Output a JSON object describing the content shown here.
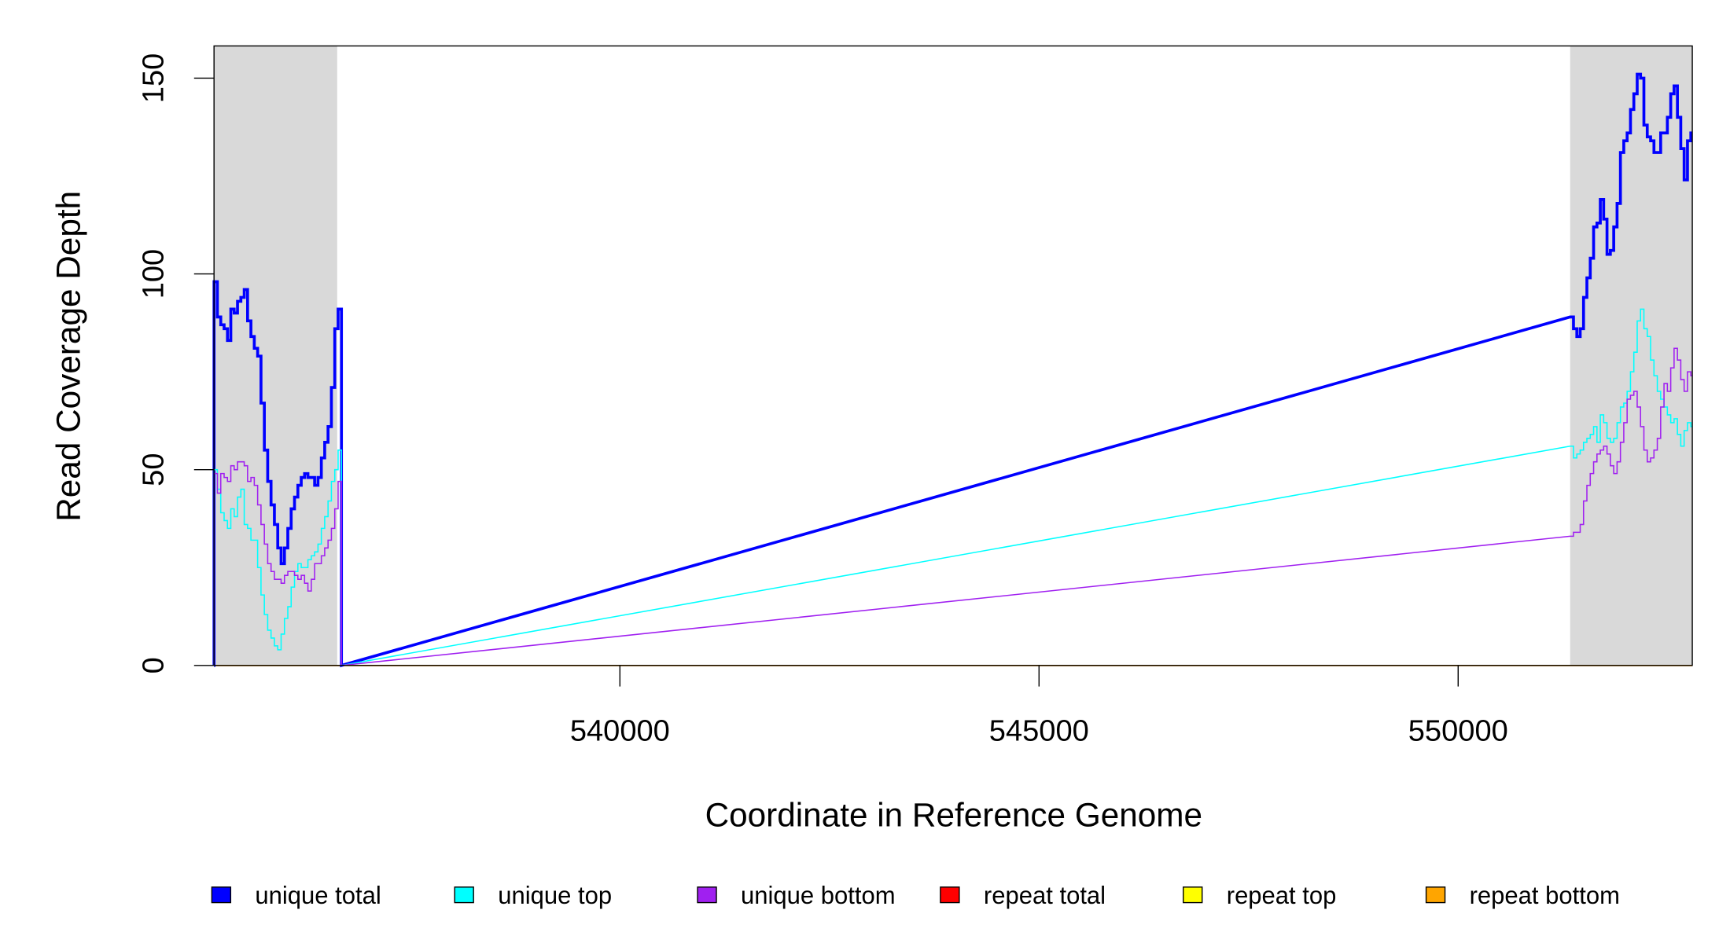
{
  "chart_data": {
    "type": "line",
    "title": "",
    "xlabel": "Coordinate in Reference Genome",
    "ylabel": "Read Coverage Depth",
    "xlim": [
      535158,
      552791
    ],
    "ylim": [
      0,
      158
    ],
    "x_ticks": [
      540000,
      545000,
      550000
    ],
    "x_tick_labels": [
      "540000",
      "545000",
      "550000"
    ],
    "y_ticks": [
      0,
      50,
      100,
      150
    ],
    "y_tick_labels": [
      "0",
      "50",
      "100",
      "150"
    ],
    "grid": false,
    "legend_position": "bottom",
    "shaded_regions": [
      [
        535158,
        536627
      ],
      [
        551336,
        552791
      ]
    ],
    "shade_color": "#d9d9d9",
    "step_bp": 40,
    "segments": [
      {
        "x_start": 535158
      },
      {
        "x_start": 551336
      }
    ],
    "series": [
      {
        "name": "repeat total",
        "color": "#ff0000",
        "segments": [
          [
            0
          ],
          [
            0
          ]
        ]
      },
      {
        "name": "repeat top",
        "color": "#ffff00",
        "segments": [
          [
            0
          ],
          [
            0
          ]
        ]
      },
      {
        "name": "repeat bottom",
        "color": "#ffa500",
        "segments": [
          [
            0
          ],
          [
            0
          ]
        ]
      },
      {
        "name": "unique total",
        "color": "#0000ff",
        "segments": [
          [
            98,
            89,
            87,
            86,
            83,
            91,
            90,
            93,
            94,
            96,
            88,
            84,
            81,
            79,
            67,
            55,
            47,
            41,
            36,
            30,
            26,
            30,
            35,
            40,
            43,
            46,
            48,
            49,
            48,
            48,
            46,
            48,
            53,
            57,
            61,
            71,
            86,
            91
          ],
          [
            89,
            86,
            84,
            86,
            94,
            99,
            104,
            112,
            113,
            119,
            114,
            105,
            106,
            112,
            118,
            131,
            134,
            136,
            142,
            146,
            151,
            150,
            138,
            135,
            134,
            131,
            131,
            136,
            136,
            140,
            146,
            148,
            140,
            132,
            124,
            134,
            136
          ]
        ]
      },
      {
        "name": "unique top",
        "color": "#00ffff",
        "segments": [
          [
            50,
            45,
            39,
            37,
            35,
            40,
            38,
            43,
            45,
            36,
            35,
            32,
            32,
            25,
            18,
            13,
            9,
            7,
            5,
            4,
            8,
            12,
            15,
            20,
            24,
            26,
            25,
            25,
            27,
            28,
            29,
            31,
            35,
            38,
            42,
            47,
            50,
            55
          ],
          [
            56,
            53,
            54,
            55,
            57,
            58,
            59,
            61,
            57,
            64,
            62,
            58,
            57,
            58,
            62,
            66,
            67,
            70,
            75,
            80,
            88,
            91,
            86,
            84,
            78,
            74,
            70,
            68,
            66,
            64,
            62,
            63,
            59,
            56,
            60,
            62,
            61
          ]
        ]
      },
      {
        "name": "unique bottom",
        "color": "#a020f0",
        "segments": [
          [
            49,
            44,
            49,
            48,
            47,
            51,
            50,
            52,
            52,
            51,
            47,
            48,
            46,
            41,
            36,
            31,
            26,
            24,
            22,
            22,
            21,
            23,
            24,
            24,
            23,
            22,
            23,
            21,
            19,
            22,
            26,
            26,
            28,
            30,
            32,
            35,
            40,
            47
          ],
          [
            33,
            34,
            34,
            36,
            42,
            46,
            49,
            52,
            54,
            55,
            56,
            54,
            51,
            49,
            52,
            57,
            62,
            68,
            69,
            70,
            66,
            61,
            55,
            52,
            53,
            55,
            58,
            66,
            72,
            70,
            76,
            81,
            78,
            73,
            70,
            75,
            74
          ]
        ]
      }
    ]
  },
  "legend": [
    {
      "label": "unique total",
      "color": "#0000ff"
    },
    {
      "label": "unique top",
      "color": "#00ffff"
    },
    {
      "label": "unique bottom",
      "color": "#a020f0"
    },
    {
      "label": "repeat total",
      "color": "#ff0000"
    },
    {
      "label": "repeat top",
      "color": "#ffff00"
    },
    {
      "label": "repeat bottom",
      "color": "#ffa500"
    }
  ]
}
